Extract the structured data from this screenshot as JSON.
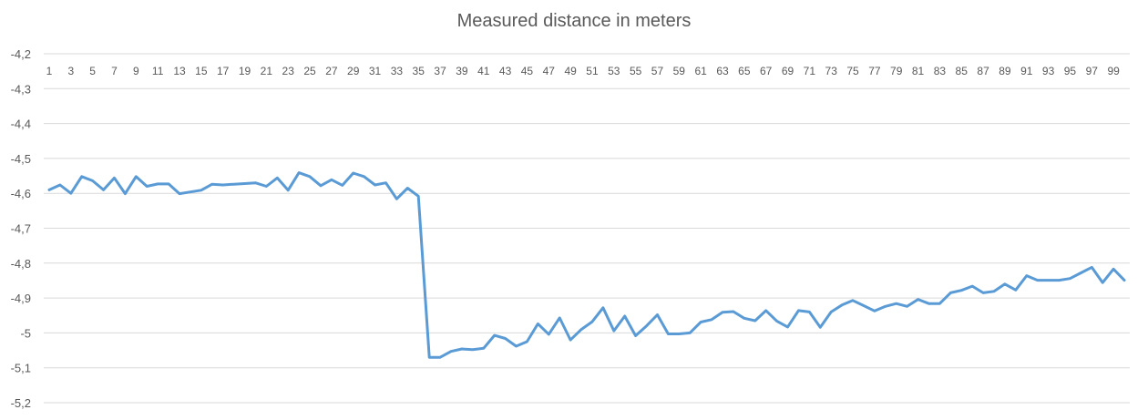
{
  "chart_data": {
    "type": "line",
    "title": "Measured distance in meters",
    "xlabel": "",
    "ylabel": "",
    "ylim": [
      -5.2,
      -4.2
    ],
    "y_tick_values": [
      -4.2,
      -4.3,
      -4.4,
      -4.5,
      -4.6,
      -4.7,
      -4.8,
      -4.9,
      -5.0,
      -5.1,
      -5.2
    ],
    "y_tick_labels": [
      "-4,2",
      "-4,3",
      "-4,4",
      "-4,5",
      "-4,6",
      "-4,7",
      "-4,8",
      "-4,9",
      "-5",
      "-5,1",
      "-5,2"
    ],
    "x_tick_labels": [
      "1",
      "3",
      "5",
      "7",
      "9",
      "11",
      "13",
      "15",
      "17",
      "19",
      "21",
      "23",
      "25",
      "27",
      "29",
      "31",
      "33",
      "35",
      "37",
      "39",
      "41",
      "43",
      "45",
      "47",
      "49",
      "51",
      "53",
      "55",
      "57",
      "59",
      "61",
      "63",
      "65",
      "67",
      "69",
      "71",
      "73",
      "75",
      "77",
      "79",
      "81",
      "83",
      "85",
      "87",
      "89",
      "91",
      "93",
      "95",
      "97",
      "99"
    ],
    "grid": true,
    "line_color": "#5b9bd5",
    "x": [
      1,
      2,
      3,
      4,
      5,
      6,
      7,
      8,
      9,
      10,
      11,
      12,
      13,
      14,
      15,
      16,
      17,
      18,
      19,
      20,
      21,
      22,
      23,
      24,
      25,
      26,
      27,
      28,
      29,
      30,
      31,
      32,
      33,
      34,
      35,
      36,
      37,
      38,
      39,
      40,
      41,
      42,
      43,
      44,
      45,
      46,
      47,
      48,
      49,
      50,
      51,
      52,
      53,
      54,
      55,
      56,
      57,
      58,
      59,
      60,
      61,
      62,
      63,
      64,
      65,
      66,
      67,
      68,
      69,
      70,
      71,
      72,
      73,
      74,
      75,
      76,
      77,
      78,
      79,
      80,
      81,
      82,
      83,
      84,
      85,
      86,
      87,
      88,
      89,
      90,
      91,
      92,
      93,
      94,
      95,
      96,
      97,
      98,
      99,
      100
    ],
    "values": [
      -4.59,
      -4.576,
      -4.6,
      -4.552,
      -4.564,
      -4.59,
      -4.556,
      -4.601,
      -4.552,
      -4.58,
      -4.573,
      -4.573,
      -4.601,
      -4.596,
      -4.591,
      -4.574,
      -4.576,
      -4.574,
      -4.572,
      -4.57,
      -4.58,
      -4.556,
      -4.591,
      -4.541,
      -4.552,
      -4.578,
      -4.561,
      -4.577,
      -4.542,
      -4.552,
      -4.576,
      -4.57,
      -4.616,
      -4.585,
      -4.608,
      -5.07,
      -5.07,
      -5.053,
      -5.046,
      -5.048,
      -5.044,
      -5.007,
      -5.016,
      -5.038,
      -5.025,
      -4.974,
      -5.004,
      -4.957,
      -5.02,
      -4.99,
      -4.968,
      -4.928,
      -4.994,
      -4.952,
      -5.008,
      -4.98,
      -4.948,
      -5.003,
      -5.003,
      -5.0,
      -4.969,
      -4.962,
      -4.941,
      -4.939,
      -4.958,
      -4.965,
      -4.936,
      -4.966,
      -4.983,
      -4.936,
      -4.94,
      -4.984,
      -4.94,
      -4.92,
      -4.907,
      -4.922,
      -4.937,
      -4.924,
      -4.916,
      -4.924,
      -4.904,
      -4.916,
      -4.916,
      -4.885,
      -4.878,
      -4.866,
      -4.885,
      -4.881,
      -4.86,
      -4.877,
      -4.836,
      -4.849,
      -4.849,
      -4.849,
      -4.844,
      -4.828,
      -4.812,
      -4.856,
      -4.817,
      -4.849
    ]
  }
}
